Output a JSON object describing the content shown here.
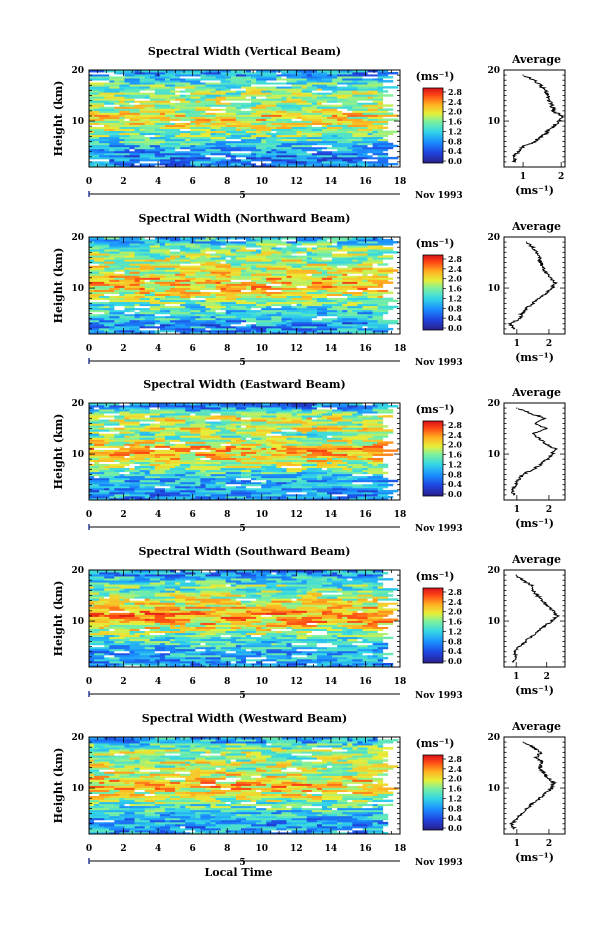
{
  "chart_data": [
    {
      "type": "heatmap",
      "title": "Spectral Width (Vertical Beam)",
      "xlabel": "",
      "ylabel": "Height (km)",
      "xlim": [
        0,
        18
      ],
      "ylim": [
        1,
        20
      ],
      "xticks": [
        0,
        2,
        4,
        6,
        8,
        10,
        12,
        14,
        16,
        18
      ],
      "yticks": [
        10,
        20
      ],
      "data_extent_x": [
        0,
        17
      ],
      "date_label": "Nov 1993",
      "day_label": "5",
      "colorbar": {
        "unit": "(ms⁻¹)",
        "ticks": [
          "2.8",
          "2.4",
          "2.0",
          "1.6",
          "1.2",
          "0.8",
          "0.4",
          "0.0"
        ]
      },
      "profile": {
        "title": "Average",
        "xlabel": "(ms⁻¹)",
        "xticks": [
          1,
          2
        ],
        "xlim": [
          0.5,
          2.1
        ],
        "ylim": [
          1,
          20
        ],
        "yticks": [
          10,
          20
        ],
        "heights": [
          2,
          3,
          4,
          5,
          6,
          7,
          8,
          9,
          10,
          11,
          12,
          13,
          14,
          15,
          16,
          17,
          18,
          19
        ],
        "values": [
          0.8,
          0.75,
          0.9,
          1.0,
          1.3,
          1.5,
          1.65,
          1.8,
          1.95,
          2.0,
          1.8,
          1.75,
          1.7,
          1.65,
          1.6,
          1.45,
          1.3,
          1.0
        ]
      }
    },
    {
      "type": "heatmap",
      "title": "Spectral Width (Northward Beam)",
      "xlabel": "",
      "ylabel": "Height (km)",
      "xlim": [
        0,
        18
      ],
      "ylim": [
        1,
        20
      ],
      "xticks": [
        0,
        2,
        4,
        6,
        8,
        10,
        12,
        14,
        16,
        18
      ],
      "yticks": [
        10,
        20
      ],
      "data_extent_x": [
        0,
        17
      ],
      "date_label": "Nov 1993",
      "day_label": "5",
      "colorbar": {
        "unit": "(ms⁻¹)",
        "ticks": [
          "2.8",
          "2.4",
          "2.0",
          "1.6",
          "1.2",
          "0.8",
          "0.4",
          "0.0"
        ]
      },
      "profile": {
        "title": "Average",
        "xlabel": "(ms⁻¹)",
        "xticks": [
          1,
          2
        ],
        "xlim": [
          0.6,
          2.5
        ],
        "ylim": [
          1,
          20
        ],
        "yticks": [
          10,
          20
        ],
        "heights": [
          2,
          3,
          4,
          5,
          6,
          7,
          8,
          9,
          10,
          11,
          12,
          13,
          14,
          15,
          16,
          17,
          18,
          19
        ],
        "values": [
          0.9,
          0.8,
          1.1,
          1.15,
          1.3,
          1.5,
          1.7,
          1.9,
          2.1,
          2.2,
          2.05,
          1.9,
          1.8,
          1.75,
          1.7,
          1.6,
          1.5,
          1.3
        ]
      }
    },
    {
      "type": "heatmap",
      "title": "Spectral Width (Eastward Beam)",
      "xlabel": "",
      "ylabel": "Height (km)",
      "xlim": [
        0,
        18
      ],
      "ylim": [
        1,
        20
      ],
      "xticks": [
        0,
        2,
        4,
        6,
        8,
        10,
        12,
        14,
        16,
        18
      ],
      "yticks": [
        10,
        20
      ],
      "data_extent_x": [
        0,
        17
      ],
      "date_label": "Nov 1993",
      "day_label": "5",
      "colorbar": {
        "unit": "(ms⁻¹)",
        "ticks": [
          "2.8",
          "2.4",
          "2.0",
          "1.6",
          "1.2",
          "0.8",
          "0.4",
          "0.0"
        ]
      },
      "profile": {
        "title": "Average",
        "xlabel": "(ms⁻¹)",
        "xticks": [
          1,
          2
        ],
        "xlim": [
          0.6,
          2.5
        ],
        "ylim": [
          1,
          20
        ],
        "yticks": [
          10,
          20
        ],
        "heights": [
          2,
          3,
          4,
          5,
          6,
          7,
          8,
          9,
          10,
          11,
          12,
          13,
          14,
          15,
          16,
          17,
          18,
          19
        ],
        "values": [
          0.9,
          0.85,
          1.0,
          1.05,
          1.2,
          1.5,
          1.75,
          1.95,
          2.1,
          2.2,
          1.9,
          1.7,
          1.5,
          1.9,
          1.6,
          1.9,
          1.4,
          1.0
        ]
      }
    },
    {
      "type": "heatmap",
      "title": "Spectral Width (Southward Beam)",
      "xlabel": "",
      "ylabel": "Height (km)",
      "xlim": [
        0,
        18
      ],
      "ylim": [
        1,
        20
      ],
      "xticks": [
        0,
        2,
        4,
        6,
        8,
        10,
        12,
        14,
        16,
        18
      ],
      "yticks": [
        10,
        20
      ],
      "data_extent_x": [
        0,
        17
      ],
      "date_label": "Nov 1993",
      "day_label": "5",
      "colorbar": {
        "unit": "(ms⁻¹)",
        "ticks": [
          "2.8",
          "2.4",
          "2.0",
          "1.6",
          "1.2",
          "0.8",
          "0.4",
          "0.0"
        ]
      },
      "profile": {
        "title": "Average",
        "xlabel": "(ms⁻¹)",
        "xticks": [
          1,
          2
        ],
        "xlim": [
          0.6,
          2.6
        ],
        "ylim": [
          1,
          20
        ],
        "yticks": [
          10,
          20
        ],
        "heights": [
          2,
          3,
          4,
          5,
          6,
          7,
          8,
          9,
          10,
          11,
          12,
          13,
          14,
          15,
          16,
          17,
          18,
          19
        ],
        "values": [
          0.9,
          1.0,
          0.95,
          1.1,
          1.3,
          1.5,
          1.7,
          1.95,
          2.15,
          2.35,
          2.2,
          2.0,
          1.85,
          1.7,
          1.55,
          1.5,
          1.2,
          1.0
        ]
      }
    },
    {
      "type": "heatmap",
      "title": "Spectral Width (Westward Beam)",
      "xlabel": "Local Time",
      "ylabel": "Height (km)",
      "xlim": [
        0,
        18
      ],
      "ylim": [
        1,
        20
      ],
      "xticks": [
        0,
        2,
        4,
        6,
        8,
        10,
        12,
        14,
        16,
        18
      ],
      "yticks": [
        10,
        20
      ],
      "data_extent_x": [
        0,
        17
      ],
      "date_label": "Nov 1993",
      "day_label": "5",
      "colorbar": {
        "unit": "(ms⁻¹)",
        "ticks": [
          "2.8",
          "2.4",
          "2.0",
          "1.6",
          "1.2",
          "0.8",
          "0.4",
          "0.0"
        ]
      },
      "profile": {
        "title": "Average",
        "xlabel": "(ms⁻¹)",
        "xticks": [
          1,
          2
        ],
        "xlim": [
          0.6,
          2.5
        ],
        "ylim": [
          1,
          20
        ],
        "yticks": [
          10,
          20
        ],
        "heights": [
          2,
          3,
          4,
          5,
          6,
          7,
          8,
          9,
          10,
          11,
          12,
          13,
          14,
          15,
          16,
          17,
          18,
          19
        ],
        "values": [
          0.9,
          0.85,
          1.0,
          1.15,
          1.3,
          1.5,
          1.7,
          1.9,
          2.1,
          2.15,
          1.95,
          1.85,
          1.7,
          1.8,
          1.6,
          1.75,
          1.5,
          1.2
        ]
      }
    }
  ]
}
